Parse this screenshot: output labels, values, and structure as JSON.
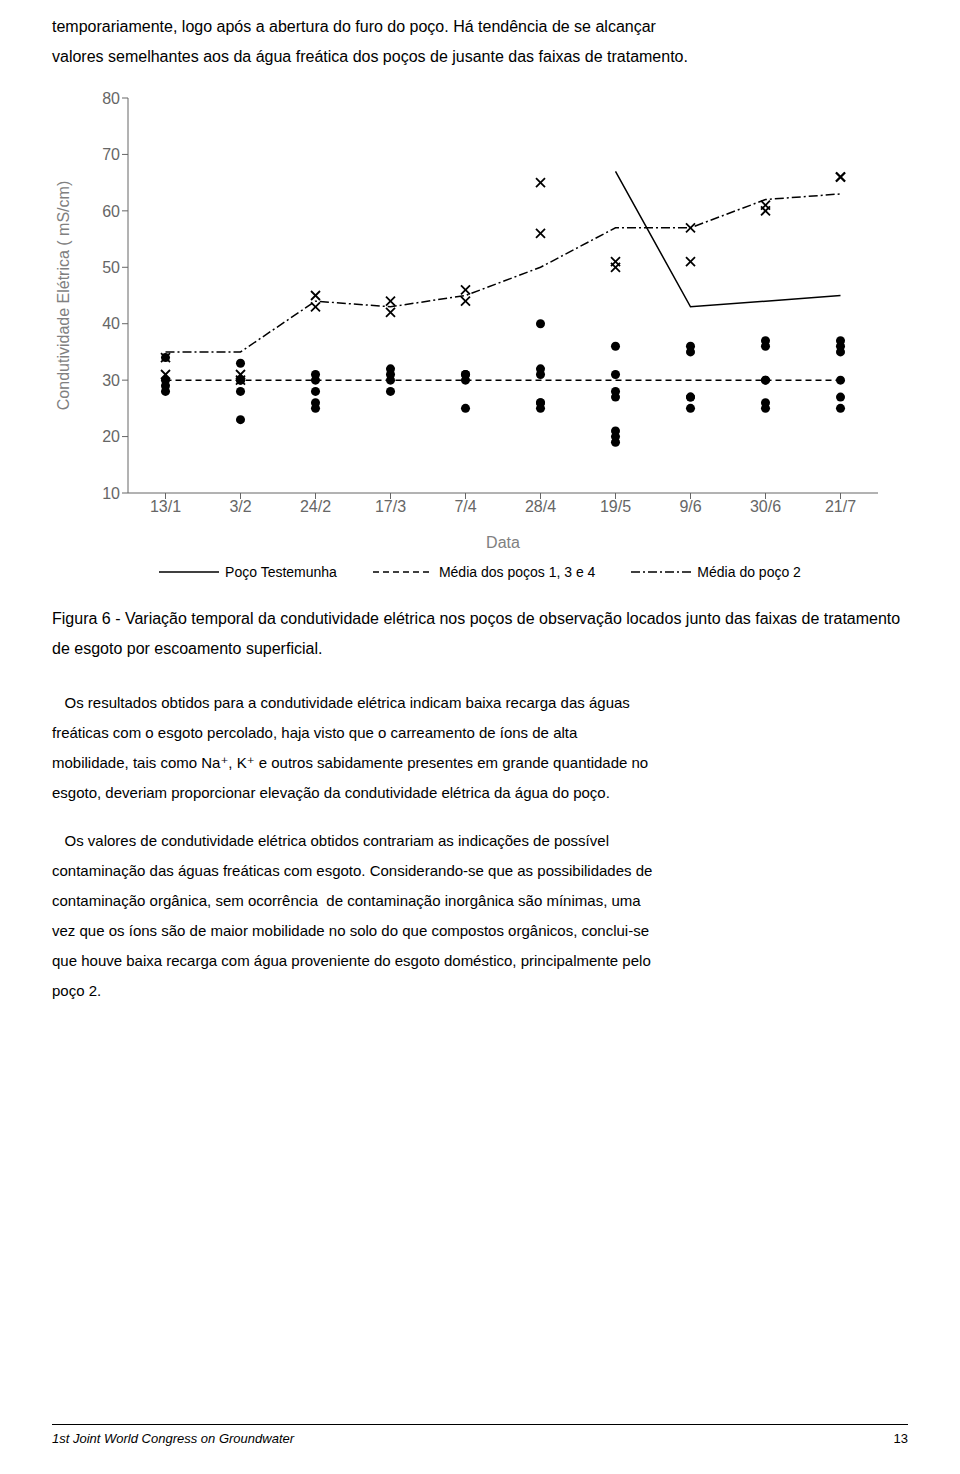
{
  "chart_data": {
    "type": "scatter",
    "title": "Figura 6 - Variação temporal da condutividade elétrica nos poços de observação locados junto das faixas de tratamento de esgoto por escoamento superficial.",
    "xlabel": "Data",
    "ylabel": "Condutividade Elétrica ( mS/cm)",
    "categories": [
      "13/1",
      "3/2",
      "24/2",
      "17/3",
      "7/4",
      "28/4",
      "19/5",
      "9/6",
      "30/6",
      "21/7"
    ],
    "ylim": [
      10,
      80
    ],
    "yticks": [
      10,
      20,
      30,
      40,
      50,
      60,
      70,
      80
    ],
    "grid": false,
    "legend": "bottom",
    "series": [
      {
        "type": "scatter",
        "marker": "circle",
        "color": "#000000",
        "x": [
          "13/1",
          "13/1",
          "13/1",
          "13/1",
          "3/2",
          "3/2",
          "3/2",
          "3/2",
          "3/2",
          "24/2",
          "24/2",
          "24/2",
          "24/2",
          "24/2",
          "17/3",
          "17/3",
          "17/3",
          "17/3",
          "7/4",
          "7/4",
          "7/4",
          "7/4",
          "28/4",
          "28/4",
          "28/4",
          "28/4",
          "28/4",
          "28/4",
          "19/5",
          "19/5",
          "19/5",
          "19/5",
          "19/5",
          "19/5",
          "19/5",
          "9/6",
          "9/6",
          "9/6",
          "9/6",
          "9/6",
          "30/6",
          "30/6",
          "30/6",
          "30/6",
          "30/6",
          "30/6",
          "21/7",
          "21/7",
          "21/7",
          "21/7",
          "21/7",
          "21/7"
        ],
        "values": [
          34,
          30,
          29,
          28,
          33,
          30,
          30,
          28,
          23,
          31,
          30,
          28,
          26,
          25,
          32,
          31,
          30,
          28,
          31,
          30,
          31,
          25,
          40,
          32,
          31,
          26,
          26,
          25,
          36,
          31,
          28,
          27,
          21,
          20,
          19,
          36,
          35,
          27,
          27,
          25,
          37,
          36,
          30,
          30,
          26,
          25,
          37,
          36,
          35,
          30,
          27,
          25
        ]
      },
      {
        "type": "scatter",
        "marker": "x",
        "color": "#000000",
        "x": [
          "13/1",
          "13/1",
          "3/2",
          "3/2",
          "24/2",
          "24/2",
          "17/3",
          "17/3",
          "7/4",
          "7/4",
          "28/4",
          "28/4",
          "19/5",
          "19/5",
          "9/6",
          "9/6",
          "30/6",
          "30/6",
          "21/7",
          "21/7"
        ],
        "values": [
          34,
          31,
          31,
          30,
          45,
          43,
          44,
          42,
          46,
          44,
          56,
          65,
          51,
          50,
          51,
          57,
          61,
          60,
          66,
          66
        ]
      },
      {
        "type": "line",
        "name": "Poço Testemunha",
        "line_style": "solid",
        "color": "#000000",
        "x": [
          "19/5",
          "9/6",
          "30/6",
          "21/7"
        ],
        "values": [
          67,
          43,
          44,
          45
        ]
      },
      {
        "type": "line",
        "name": "Média dos poços 1, 3 e 4",
        "line_style": "dashed",
        "color": "#000000",
        "x": [
          "13/1",
          "3/2",
          "24/2",
          "17/3",
          "7/4",
          "28/4",
          "19/5",
          "9/6",
          "30/6",
          "21/7"
        ],
        "values": [
          30,
          30,
          30,
          30,
          30,
          30,
          30,
          30,
          30,
          30
        ]
      },
      {
        "type": "line",
        "name": "Média do poço 2",
        "line_style": "dashdot",
        "color": "#000000",
        "x": [
          "13/1",
          "3/2",
          "24/2",
          "17/3",
          "7/4",
          "28/4",
          "19/5",
          "9/6",
          "30/6",
          "21/7"
        ],
        "values": [
          35,
          35,
          44,
          43,
          45,
          50,
          57,
          57,
          62,
          63
        ]
      }
    ],
    "annotations": [
      "temporariamente, logo após a abertura do furo do poço. Há tendência de se alcançar",
      "valores semelhantes aos da água freática dos poços de jusante das faixas de tratamento.",
      "   Os resultados obtidos para a condutividade elétrica indicam baixa recarga das águas",
      "freáticas com o esgoto percolado, haja visto que o carreamento de íons de alta",
      "mobilidade, tais como Na⁺, K⁺ e outros sabidamente presentes em grande quantidade no",
      "esgoto, deveriam proporcionar elevação da condutividade elétrica da água do poço.",
      "   Os valores de condutividade elétrica obtidos contrariam as indicações de possível",
      "contaminação das águas freáticas com esgoto. Considerando-se que as possibilidades de",
      "contaminação orgânica, sem ocorrência  de contaminação inorgânica são mínimas, uma",
      "vez que os íons são de maior mobilidade no solo do que compostos orgânicos, conclui-se",
      "que houve baixa recarga com água proveniente do esgoto doméstico, principalmente pelo",
      "poço 2.",
      "1st Joint World Congress on Groundwater",
      "13"
    ]
  }
}
